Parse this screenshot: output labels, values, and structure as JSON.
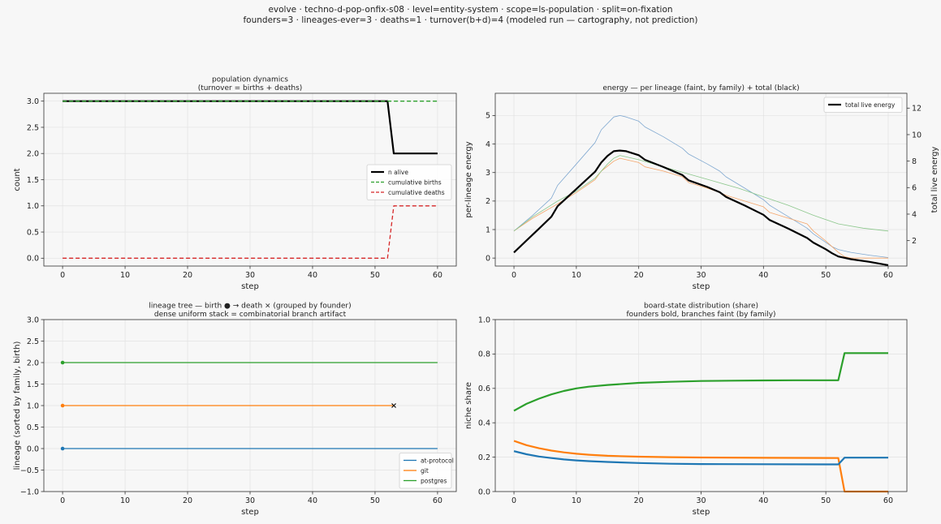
{
  "suptitle": {
    "line1": "evolve · techno-d-pop-onfix-s08 · level=entity-system · scope=ls-population · split=on-fixation",
    "line2": "founders=3 · lineages-ever=3 · deaths=1 · turnover(b+d)=4   (modeled run — cartography, not prediction)"
  },
  "colors": {
    "black": "#000000",
    "green": "#2ca02c",
    "red": "#d62728",
    "blue": "#1f77b4",
    "orange": "#ff7f0e",
    "faint_blue": "#7fa8d0",
    "faint_orange": "#f4a56a",
    "faint_green": "#8cc78c"
  },
  "chart_data": [
    {
      "id": "population",
      "type": "line",
      "title": [
        "population dynamics",
        "(turnover = births + deaths)"
      ],
      "xlabel": "step",
      "ylabel": "count",
      "xlim": [
        -3,
        63
      ],
      "ylim": [
        -0.15,
        3.15
      ],
      "xticks": [
        0,
        10,
        20,
        30,
        40,
        50,
        60
      ],
      "yticks": [
        0.0,
        0.5,
        1.0,
        1.5,
        2.0,
        2.5,
        3.0
      ],
      "ytick_labels": [
        "0.0",
        "0.5",
        "1.0",
        "1.5",
        "2.0",
        "2.5",
        "3.0"
      ],
      "grid": true,
      "legend": "center-right",
      "series": [
        {
          "name": "n alive",
          "color": "#000000",
          "width": 2.2,
          "dash": "",
          "points": [
            [
              0,
              3
            ],
            [
              52,
              3
            ],
            [
              53,
              2
            ],
            [
              60,
              2
            ]
          ]
        },
        {
          "name": "cumulative births",
          "color": "#2ca02c",
          "width": 1.3,
          "dash": "5,3",
          "points": [
            [
              0,
              3
            ],
            [
              60,
              3
            ]
          ]
        },
        {
          "name": "cumulative deaths",
          "color": "#d62728",
          "width": 1.3,
          "dash": "5,3",
          "points": [
            [
              0,
              0
            ],
            [
              52,
              0
            ],
            [
              53,
              1
            ],
            [
              60,
              1
            ]
          ]
        }
      ]
    },
    {
      "id": "energy",
      "type": "line",
      "title": [
        "energy — per lineage (faint, by family) + total (black)"
      ],
      "xlabel": "step",
      "ylabel": "per-lineage energy",
      "ylabel_right": "total live energy",
      "xlim": [
        -3,
        63
      ],
      "ylim": [
        -0.28,
        5.78
      ],
      "ylim_right": [
        0.08,
        13.12
      ],
      "xticks": [
        0,
        10,
        20,
        30,
        40,
        50,
        60
      ],
      "yticks": [
        0,
        1,
        2,
        3,
        4,
        5
      ],
      "ytick_labels": [
        "0",
        "1",
        "2",
        "3",
        "4",
        "5"
      ],
      "yticks_right": [
        2,
        4,
        6,
        8,
        10,
        12
      ],
      "grid": true,
      "legend": "top-right",
      "series": [
        {
          "name": "",
          "axis": "left",
          "color": "#7fa8d0",
          "width": 0.8,
          "dash": "",
          "points": [
            [
              0,
              0.95
            ],
            [
              3,
              1.5
            ],
            [
              6,
              2.1
            ],
            [
              7,
              2.55
            ],
            [
              10,
              3.3
            ],
            [
              13,
              4.05
            ],
            [
              14,
              4.5
            ],
            [
              16,
              4.95
            ],
            [
              17,
              5.0
            ],
            [
              18,
              4.95
            ],
            [
              20,
              4.8
            ],
            [
              21,
              4.6
            ],
            [
              24,
              4.25
            ],
            [
              27,
              3.85
            ],
            [
              28,
              3.65
            ],
            [
              31,
              3.3
            ],
            [
              33,
              3.05
            ],
            [
              34,
              2.85
            ],
            [
              37,
              2.45
            ],
            [
              40,
              2.05
            ],
            [
              41,
              1.85
            ],
            [
              44,
              1.45
            ],
            [
              47,
              1.05
            ],
            [
              48,
              0.85
            ],
            [
              50,
              0.55
            ],
            [
              51,
              0.4
            ],
            [
              52,
              0.3
            ],
            [
              54,
              0.2
            ],
            [
              57,
              0.1
            ],
            [
              60,
              0.02
            ]
          ]
        },
        {
          "name": "",
          "axis": "left",
          "color": "#f4a56a",
          "width": 0.8,
          "dash": "",
          "points": [
            [
              0,
              0.95
            ],
            [
              3,
              1.4
            ],
            [
              7,
              1.9
            ],
            [
              10,
              2.3
            ],
            [
              13,
              2.75
            ],
            [
              14,
              3.05
            ],
            [
              16,
              3.4
            ],
            [
              17,
              3.5
            ],
            [
              18,
              3.45
            ],
            [
              20,
              3.35
            ],
            [
              21,
              3.2
            ],
            [
              24,
              3.05
            ],
            [
              27,
              2.85
            ],
            [
              28,
              2.65
            ],
            [
              31,
              2.45
            ],
            [
              33,
              2.3
            ],
            [
              34,
              2.2
            ],
            [
              37,
              2.0
            ],
            [
              40,
              1.8
            ],
            [
              41,
              1.6
            ],
            [
              44,
              1.4
            ],
            [
              47,
              1.2
            ],
            [
              48,
              0.95
            ],
            [
              50,
              0.6
            ],
            [
              51,
              0.4
            ],
            [
              52,
              0.2
            ],
            [
              53,
              0.05
            ],
            [
              54,
              0.0
            ],
            [
              60,
              0.0
            ]
          ]
        },
        {
          "name": "",
          "axis": "left",
          "color": "#8cc78c",
          "width": 0.8,
          "dash": "",
          "points": [
            [
              0,
              0.95
            ],
            [
              3,
              1.45
            ],
            [
              7,
              2.0
            ],
            [
              10,
              2.35
            ],
            [
              13,
              2.8
            ],
            [
              15,
              3.3
            ],
            [
              16,
              3.5
            ],
            [
              17,
              3.6
            ],
            [
              18,
              3.55
            ],
            [
              20,
              3.45
            ],
            [
              24,
              3.2
            ],
            [
              28,
              2.95
            ],
            [
              32,
              2.7
            ],
            [
              36,
              2.45
            ],
            [
              40,
              2.15
            ],
            [
              44,
              1.85
            ],
            [
              48,
              1.5
            ],
            [
              52,
              1.2
            ],
            [
              56,
              1.05
            ],
            [
              60,
              0.95
            ]
          ]
        },
        {
          "name": "total live energy",
          "axis": "right",
          "color": "#000000",
          "width": 2.2,
          "dash": "",
          "points": [
            [
              0,
              1.1
            ],
            [
              2,
              2.0
            ],
            [
              4,
              2.9
            ],
            [
              6,
              3.8
            ],
            [
              7,
              4.6
            ],
            [
              10,
              5.9
            ],
            [
              13,
              7.2
            ],
            [
              14,
              7.9
            ],
            [
              15,
              8.4
            ],
            [
              16,
              8.75
            ],
            [
              17,
              8.8
            ],
            [
              18,
              8.75
            ],
            [
              20,
              8.45
            ],
            [
              21,
              8.1
            ],
            [
              24,
              7.55
            ],
            [
              27,
              6.95
            ],
            [
              28,
              6.55
            ],
            [
              31,
              6.05
            ],
            [
              33,
              5.65
            ],
            [
              34,
              5.3
            ],
            [
              37,
              4.65
            ],
            [
              40,
              3.95
            ],
            [
              41,
              3.55
            ],
            [
              44,
              2.9
            ],
            [
              47,
              2.2
            ],
            [
              48,
              1.85
            ],
            [
              50,
              1.35
            ],
            [
              51,
              1.05
            ],
            [
              52,
              0.8
            ],
            [
              54,
              0.6
            ],
            [
              57,
              0.4
            ],
            [
              60,
              0.15
            ]
          ]
        }
      ]
    },
    {
      "id": "lineage",
      "type": "line",
      "title": [
        "lineage tree — birth ● → death ×  (grouped by founder)",
        "dense uniform stack = combinatorial branch artifact"
      ],
      "xlabel": "step",
      "ylabel": "lineage (sorted by family, birth)",
      "xlim": [
        -3,
        63
      ],
      "ylim": [
        -1.0,
        3.0
      ],
      "xticks": [
        0,
        10,
        20,
        30,
        40,
        50,
        60
      ],
      "yticks": [
        -1.0,
        -0.5,
        0.0,
        0.5,
        1.0,
        1.5,
        2.0,
        2.5,
        3.0
      ],
      "ytick_labels": [
        "−1.0",
        "−0.5",
        "0.0",
        "0.5",
        "1.0",
        "1.5",
        "2.0",
        "2.5",
        "3.0"
      ],
      "grid": true,
      "legend": "bottom-right",
      "series": [
        {
          "name": "at-protocol",
          "color": "#1f77b4",
          "width": 1.3,
          "dash": "",
          "points": [
            [
              0,
              0
            ],
            [
              60,
              0
            ]
          ],
          "birth": [
            0,
            0
          ]
        },
        {
          "name": "git",
          "color": "#ff7f0e",
          "width": 1.3,
          "dash": "",
          "points": [
            [
              0,
              1
            ],
            [
              53,
              1
            ]
          ],
          "birth": [
            0,
            1
          ],
          "death": [
            53,
            1
          ]
        },
        {
          "name": "postgres",
          "color": "#2ca02c",
          "width": 1.3,
          "dash": "",
          "points": [
            [
              0,
              2
            ],
            [
              60,
              2
            ]
          ],
          "birth": [
            0,
            2
          ]
        }
      ]
    },
    {
      "id": "boardstate",
      "type": "line",
      "title": [
        "board-state distribution (share)",
        "founders bold, branches faint (by family)"
      ],
      "xlabel": "step",
      "ylabel": "niche share",
      "xlim": [
        -3,
        63
      ],
      "ylim": [
        0.0,
        1.0
      ],
      "xticks": [
        0,
        10,
        20,
        30,
        40,
        50,
        60
      ],
      "yticks": [
        0.0,
        0.2,
        0.4,
        0.6,
        0.8,
        1.0
      ],
      "ytick_labels": [
        "0.0",
        "0.2",
        "0.4",
        "0.6",
        "0.8",
        "1.0"
      ],
      "grid": true,
      "series": [
        {
          "name": "",
          "color": "#2ca02c",
          "width": 2.2,
          "dash": "",
          "points": [
            [
              0,
              0.47
            ],
            [
              2,
              0.51
            ],
            [
              4,
              0.54
            ],
            [
              6,
              0.565
            ],
            [
              8,
              0.585
            ],
            [
              10,
              0.6
            ],
            [
              12,
              0.61
            ],
            [
              15,
              0.62
            ],
            [
              20,
              0.632
            ],
            [
              25,
              0.638
            ],
            [
              30,
              0.643
            ],
            [
              35,
              0.645
            ],
            [
              40,
              0.646
            ],
            [
              45,
              0.647
            ],
            [
              52,
              0.647
            ],
            [
              53,
              0.805
            ],
            [
              60,
              0.805
            ]
          ]
        },
        {
          "name": "",
          "color": "#ff7f0e",
          "width": 2.2,
          "dash": "",
          "points": [
            [
              0,
              0.295
            ],
            [
              2,
              0.27
            ],
            [
              4,
              0.252
            ],
            [
              6,
              0.238
            ],
            [
              8,
              0.228
            ],
            [
              10,
              0.22
            ],
            [
              12,
              0.214
            ],
            [
              15,
              0.208
            ],
            [
              20,
              0.203
            ],
            [
              25,
              0.2
            ],
            [
              30,
              0.198
            ],
            [
              40,
              0.196
            ],
            [
              52,
              0.195
            ],
            [
              53,
              0.0
            ],
            [
              60,
              0.0
            ]
          ]
        },
        {
          "name": "",
          "color": "#1f77b4",
          "width": 2.2,
          "dash": "",
          "points": [
            [
              0,
              0.235
            ],
            [
              2,
              0.217
            ],
            [
              4,
              0.204
            ],
            [
              6,
              0.195
            ],
            [
              8,
              0.187
            ],
            [
              10,
              0.181
            ],
            [
              12,
              0.177
            ],
            [
              15,
              0.172
            ],
            [
              20,
              0.166
            ],
            [
              25,
              0.162
            ],
            [
              30,
              0.16
            ],
            [
              40,
              0.159
            ],
            [
              52,
              0.158
            ],
            [
              53,
              0.197
            ],
            [
              60,
              0.197
            ]
          ]
        }
      ]
    }
  ]
}
